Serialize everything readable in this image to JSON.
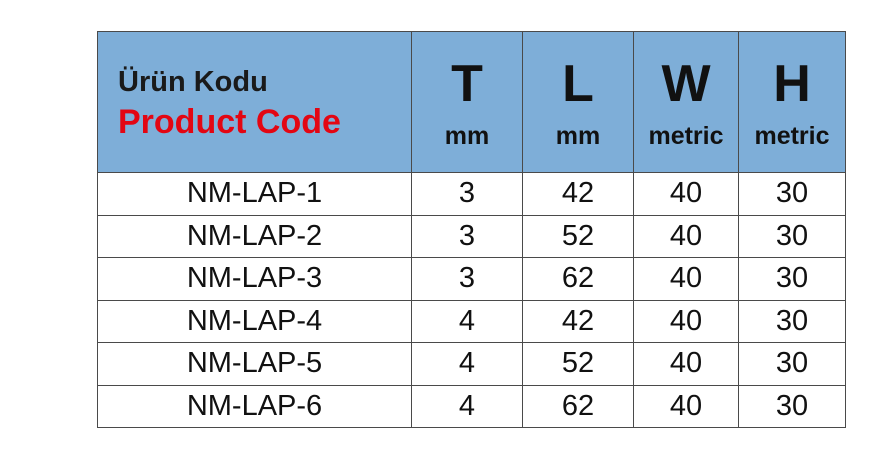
{
  "header": {
    "code_tr": "Ürün Kodu",
    "code_en": "Product Code",
    "columns": [
      {
        "letter": "T",
        "unit": "mm"
      },
      {
        "letter": "L",
        "unit": "mm"
      },
      {
        "letter": "W",
        "unit": "metric"
      },
      {
        "letter": "H",
        "unit": "metric"
      }
    ]
  },
  "colors": {
    "header_bg": "#7eaed8",
    "product_code": "#e30613"
  },
  "rows": [
    [
      "NM-LAP-1",
      "3",
      "42",
      "40",
      "30"
    ],
    [
      "NM-LAP-2",
      "3",
      "52",
      "40",
      "30"
    ],
    [
      "NM-LAP-3",
      "3",
      "62",
      "40",
      "30"
    ],
    [
      "NM-LAP-4",
      "4",
      "42",
      "40",
      "30"
    ],
    [
      "NM-LAP-5",
      "4",
      "52",
      "40",
      "30"
    ],
    [
      "NM-LAP-6",
      "4",
      "62",
      "40",
      "30"
    ]
  ]
}
